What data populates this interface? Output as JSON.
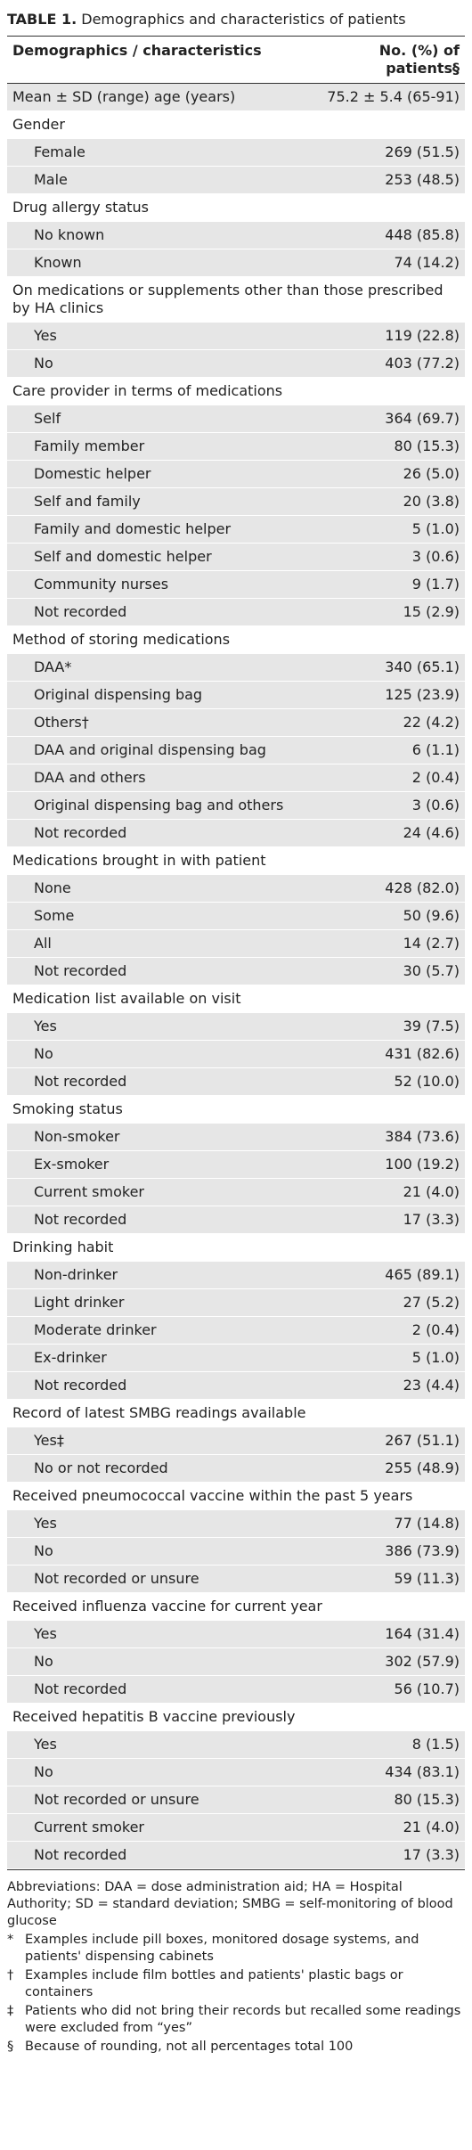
{
  "table": {
    "label": "TABLE 1.",
    "title": "Demographics and characteristics of patients",
    "columns": [
      "Demographics / characteristics",
      "No. (%) of patients§"
    ],
    "groups": [
      {
        "rows": [
          [
            "Mean ± SD (range) age (years)",
            "75.2 ± 5.4 (65-91)"
          ]
        ]
      },
      {
        "heading": "Gender",
        "rows": [
          [
            "Female",
            "269 (51.5)"
          ],
          [
            "Male",
            "253 (48.5)"
          ]
        ]
      },
      {
        "heading": "Drug allergy status",
        "rows": [
          [
            "No known",
            "448 (85.8)"
          ],
          [
            "Known",
            "74 (14.2)"
          ]
        ]
      },
      {
        "heading": "On medications or supplements other than those prescribed by HA clinics",
        "rows": [
          [
            "Yes",
            "119 (22.8)"
          ],
          [
            "No",
            "403 (77.2)"
          ]
        ]
      },
      {
        "heading": "Care provider in terms of medications",
        "rows": [
          [
            "Self",
            "364 (69.7)"
          ],
          [
            "Family member",
            "80 (15.3)"
          ],
          [
            "Domestic helper",
            "26 (5.0)"
          ],
          [
            "Self and family",
            "20 (3.8)"
          ],
          [
            "Family and domestic helper",
            "5 (1.0)"
          ],
          [
            "Self and domestic helper",
            "3 (0.6)"
          ],
          [
            "Community nurses",
            "9 (1.7)"
          ],
          [
            "Not recorded",
            "15 (2.9)"
          ]
        ]
      },
      {
        "heading": "Method of storing medications",
        "rows": [
          [
            "DAA*",
            "340 (65.1)"
          ],
          [
            "Original dispensing bag",
            "125 (23.9)"
          ],
          [
            "Others†",
            "22 (4.2)"
          ],
          [
            "DAA and original dispensing bag",
            "6 (1.1)"
          ],
          [
            "DAA and others",
            "2 (0.4)"
          ],
          [
            "Original dispensing bag and others",
            "3 (0.6)"
          ],
          [
            "Not recorded",
            "24 (4.6)"
          ]
        ]
      },
      {
        "heading": "Medications brought in with patient",
        "rows": [
          [
            "None",
            "428 (82.0)"
          ],
          [
            "Some",
            "50 (9.6)"
          ],
          [
            "All",
            "14 (2.7)"
          ],
          [
            "Not recorded",
            "30 (5.7)"
          ]
        ]
      },
      {
        "heading": "Medication list available on visit",
        "rows": [
          [
            "Yes",
            "39 (7.5)"
          ],
          [
            "No",
            "431 (82.6)"
          ],
          [
            "Not recorded",
            "52 (10.0)"
          ]
        ]
      },
      {
        "heading": "Smoking status",
        "rows": [
          [
            "Non-smoker",
            "384 (73.6)"
          ],
          [
            "Ex-smoker",
            "100 (19.2)"
          ],
          [
            "Current smoker",
            "21 (4.0)"
          ],
          [
            "Not recorded",
            "17 (3.3)"
          ]
        ]
      },
      {
        "heading": "Drinking habit",
        "rows": [
          [
            "Non-drinker",
            "465 (89.1)"
          ],
          [
            "Light drinker",
            "27 (5.2)"
          ],
          [
            "Moderate drinker",
            "2 (0.4)"
          ],
          [
            "Ex-drinker",
            "5 (1.0)"
          ],
          [
            "Not recorded",
            "23 (4.4)"
          ]
        ]
      },
      {
        "heading": "Record of latest SMBG readings available",
        "rows": [
          [
            "Yes‡",
            "267 (51.1)"
          ],
          [
            "No or not recorded",
            "255 (48.9)"
          ]
        ]
      },
      {
        "heading": "Received pneumococcal vaccine within the past 5 years",
        "rows": [
          [
            "Yes",
            "77 (14.8)"
          ],
          [
            "No",
            "386 (73.9)"
          ],
          [
            "Not recorded or unsure",
            "59 (11.3)"
          ]
        ]
      },
      {
        "heading": "Received influenza vaccine for current year",
        "rows": [
          [
            "Yes",
            "164 (31.4)"
          ],
          [
            "No",
            "302 (57.9)"
          ],
          [
            "Not recorded",
            "56 (10.7)"
          ]
        ]
      },
      {
        "heading": "Received hepatitis B vaccine previously",
        "rows": [
          [
            "Yes",
            "8 (1.5)"
          ],
          [
            "No",
            "434 (83.1)"
          ],
          [
            "Not recorded or unsure",
            "80 (15.3)"
          ],
          [
            "Current smoker",
            "21 (4.0)"
          ],
          [
            "Not recorded",
            "17 (3.3)"
          ]
        ]
      }
    ],
    "abbreviations": "Abbreviations: DAA = dose administration aid; HA = Hospital Authority; SD = standard deviation; SMBG = self-monitoring of blood glucose",
    "footnotes": [
      {
        "symbol": "*",
        "text": "Examples include pill boxes, monitored dosage systems, and patients' dispensing cabinets"
      },
      {
        "symbol": "†",
        "text": "Examples include film bottles and patients' plastic bags or containers"
      },
      {
        "symbol": "‡",
        "text": "Patients who did not bring their records but recalled some readings were excluded from “yes”"
      },
      {
        "symbol": "§",
        "text": "Because of rounding, not all percentages total 100"
      }
    ]
  }
}
